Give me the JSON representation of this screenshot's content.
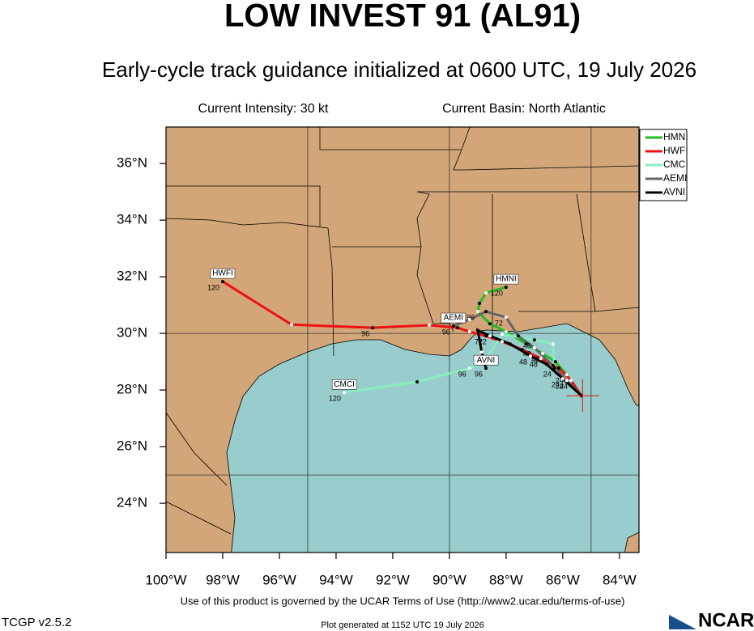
{
  "chart_data": {
    "type": "track",
    "title": "LOW INVEST 91 (AL91)",
    "subtitle": "Early-cycle track guidance initialized at 0600 UTC, 19 July 2026",
    "intensity": "Current Intensity: 30 kt",
    "basin": "Current Basin: North Atlantic",
    "footer": "Use of this product is governed by the UCAR Terms of Use (http://www2.ucar.edu/terms-of-use)",
    "version": "TCGP v2.5.2",
    "generated": "Plot generated at 1152 UTC   19 July 2026",
    "logo": "NCAR",
    "xlim": [
      -100,
      -83.31
    ],
    "ylim": [
      22.26,
      37.29
    ],
    "xticks": [
      {
        "value": -100,
        "label": "100°W"
      },
      {
        "value": -98,
        "label": "98°W"
      },
      {
        "value": -96,
        "label": "96°W"
      },
      {
        "value": -94,
        "label": "94°W"
      },
      {
        "value": -92,
        "label": "92°W"
      },
      {
        "value": -90,
        "label": "90°W"
      },
      {
        "value": -88,
        "label": "88°W"
      },
      {
        "value": -86,
        "label": "86°W"
      },
      {
        "value": -84,
        "label": "84°W"
      }
    ],
    "yticks": [
      {
        "value": 24,
        "label": "24°N"
      },
      {
        "value": 26,
        "label": "26°N"
      },
      {
        "value": 28,
        "label": "28°N"
      },
      {
        "value": 30,
        "label": "30°N"
      },
      {
        "value": 32,
        "label": "32°N"
      },
      {
        "value": 34,
        "label": "34°N"
      },
      {
        "value": 36,
        "label": "36°N"
      }
    ],
    "xgrid": [
      -95,
      -90,
      -85
    ],
    "ygrid": [
      25,
      30
    ],
    "current_position": {
      "x": -85.3,
      "y": 27.8,
      "color": "#ee1111"
    },
    "series": [
      {
        "name": "HMNI",
        "color": "#22bb22",
        "x": [
          -85.34,
          -85.86,
          -86.26,
          -86.71,
          -87.29,
          -88.0,
          -88.57,
          -89.0,
          -88.94,
          -88.71,
          -88.0
        ],
        "values": [
          27.8,
          28.54,
          29.0,
          29.29,
          29.63,
          30.06,
          30.34,
          30.77,
          31.06,
          31.43,
          31.63
        ],
        "point_labels": [
          null,
          "24",
          null,
          "48",
          null,
          null,
          null,
          "96",
          null,
          null,
          "120"
        ]
      },
      {
        "name": "HWFI",
        "color": "#ee1111",
        "x": [
          -85.34,
          -85.71,
          -86.14,
          -86.77,
          -87.43,
          -88.14,
          -88.71,
          -89.29,
          -89.71,
          -90.71,
          -92.71,
          -95.57,
          -98.0
        ],
        "values": [
          27.8,
          28.34,
          28.77,
          29.11,
          29.43,
          29.71,
          29.91,
          30.06,
          30.2,
          30.29,
          30.2,
          30.31,
          31.83
        ],
        "point_labels": [
          null,
          "24",
          null,
          "48",
          null,
          null,
          "72",
          null,
          null,
          null,
          "96",
          null,
          "120"
        ]
      },
      {
        "name": "CMCI",
        "color": "#88eebb",
        "x": [
          -85.34,
          -85.86,
          -86.29,
          -86.34,
          -87.0,
          -88.14,
          -88.71,
          -89.29,
          -91.14,
          -93.71
        ],
        "values": [
          27.8,
          28.34,
          28.77,
          29.63,
          29.77,
          29.97,
          29.06,
          28.77,
          28.29,
          27.91
        ],
        "point_labels": [
          null,
          null,
          "24",
          null,
          "48",
          null,
          null,
          "96",
          null,
          "120"
        ]
      },
      {
        "name": "AEMI",
        "color": "#666666",
        "x": [
          -85.34,
          -85.86,
          -86.34,
          -87.0,
          -87.57,
          -88.0,
          -88.71,
          -89.29,
          -89.86
        ],
        "values": [
          27.8,
          28.34,
          28.86,
          29.49,
          29.91,
          30.57,
          30.77,
          30.49,
          30.26
        ],
        "point_labels": [
          null,
          "24",
          null,
          "48",
          null,
          "72",
          null,
          null,
          "96"
        ]
      },
      {
        "name": "AVNI",
        "color": "#000000",
        "x": [
          -85.34,
          -86.0,
          -86.57,
          -87.14,
          -87.86,
          -88.57,
          -89.0,
          -88.86,
          -88.71
        ],
        "values": [
          27.8,
          28.4,
          28.91,
          29.2,
          29.63,
          29.91,
          30.11,
          29.34,
          28.77
        ],
        "point_labels": [
          null,
          "24",
          null,
          "48",
          null,
          "72",
          null,
          null,
          "96"
        ]
      }
    ]
  }
}
